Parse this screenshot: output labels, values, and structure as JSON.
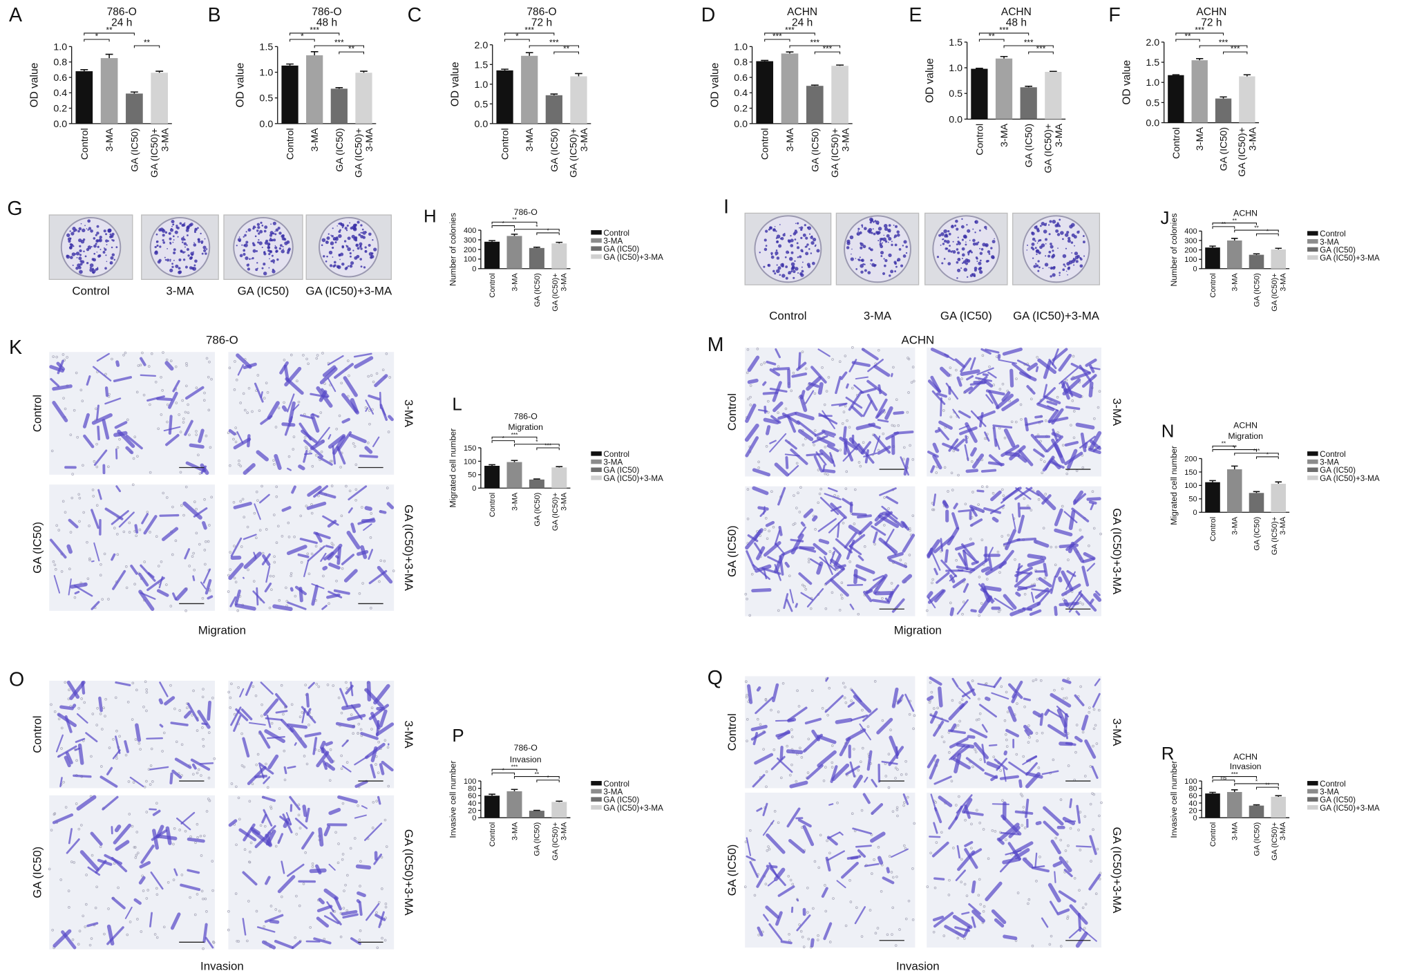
{
  "chart_data": [
    {
      "type": "bar",
      "panel": "A",
      "title": "786-O",
      "subtitle": "24 h",
      "y_label": "OD value",
      "categories": [
        "Control",
        "3-MA",
        "GA (IC50)",
        [
          "GA (IC50)+",
          "3-MA"
        ]
      ],
      "values": [
        0.68,
        0.85,
        0.39,
        0.66
      ],
      "errors": [
        0.02,
        0.05,
        0.02,
        0.02
      ],
      "colors": [
        "#111111",
        "#a3a3a3",
        "#6e6e6e",
        "#d4d4d4"
      ],
      "ylim": [
        0,
        1
      ],
      "yticks": [
        {
          "value": 0,
          "label": "0.0"
        },
        0.2,
        0.4,
        0.6,
        0.8,
        {
          "value": 1,
          "label": "1.0"
        }
      ],
      "comparisons": [
        {
          "pair": [
            0,
            2
          ],
          "label": "**"
        },
        {
          "pair": [
            0,
            1
          ],
          "label": "*"
        },
        {
          "pair": [
            2,
            3
          ],
          "label": "**"
        }
      ]
    },
    {
      "type": "bar",
      "panel": "B",
      "title": "786-O",
      "subtitle": "48 h",
      "y_label": "OD value",
      "categories": [
        "Control",
        "3-MA",
        "GA (IC50)",
        [
          "GA (IC50)+",
          "3-MA"
        ]
      ],
      "values": [
        1.13,
        1.33,
        0.68,
        0.99
      ],
      "errors": [
        0.03,
        0.07,
        0.02,
        0.03
      ],
      "colors": [
        "#111111",
        "#a3a3a3",
        "#6e6e6e",
        "#d4d4d4"
      ],
      "ylim": [
        0,
        1.5
      ],
      "yticks": [
        {
          "value": 0,
          "label": "0.0"
        },
        0.5,
        {
          "value": 1,
          "label": "1.0"
        },
        1.5
      ],
      "comparisons": [
        {
          "pair": [
            0,
            2
          ],
          "label": "***"
        },
        {
          "pair": [
            0,
            1
          ],
          "label": "*"
        },
        {
          "pair": [
            1,
            3
          ],
          "label": "***"
        },
        {
          "pair": [
            2,
            3
          ],
          "label": "**"
        }
      ]
    },
    {
      "type": "bar",
      "panel": "C",
      "title": "786-O",
      "subtitle": "72 h",
      "y_label": "OD value",
      "categories": [
        "Control",
        "3-MA",
        "GA (IC50)",
        [
          "GA (IC50)+",
          "3-MA"
        ]
      ],
      "values": [
        1.35,
        1.72,
        0.72,
        1.2
      ],
      "errors": [
        0.03,
        0.08,
        0.03,
        0.07
      ],
      "colors": [
        "#111111",
        "#a3a3a3",
        "#6e6e6e",
        "#d4d4d4"
      ],
      "ylim": [
        0,
        2
      ],
      "yticks": [
        {
          "value": 0,
          "label": "0.0"
        },
        0.5,
        {
          "value": 1,
          "label": "1.0"
        },
        1.5,
        {
          "value": 2,
          "label": "2.0"
        }
      ],
      "comparisons": [
        {
          "pair": [
            0,
            2
          ],
          "label": "***"
        },
        {
          "pair": [
            0,
            1
          ],
          "label": "*"
        },
        {
          "pair": [
            1,
            3
          ],
          "label": "***"
        },
        {
          "pair": [
            2,
            3
          ],
          "label": "**"
        }
      ]
    },
    {
      "type": "bar",
      "panel": "D",
      "title": "ACHN",
      "subtitle": "24 h",
      "y_label": "OD value",
      "categories": [
        "Control",
        "3-MA",
        "GA (IC50)",
        [
          "GA (IC50)+",
          "3-MA"
        ]
      ],
      "values": [
        0.81,
        0.91,
        0.49,
        0.75
      ],
      "errors": [
        0.01,
        0.02,
        0.01,
        0.01
      ],
      "colors": [
        "#111111",
        "#a3a3a3",
        "#6e6e6e",
        "#d4d4d4"
      ],
      "ylim": [
        0,
        1
      ],
      "yticks": [
        {
          "value": 0,
          "label": "0.0"
        },
        0.2,
        0.4,
        0.6,
        0.8,
        {
          "value": 1,
          "label": "1.0"
        }
      ],
      "comparisons": [
        {
          "pair": [
            0,
            2
          ],
          "label": "***"
        },
        {
          "pair": [
            0,
            1
          ],
          "label": "***"
        },
        {
          "pair": [
            1,
            3
          ],
          "label": "***"
        },
        {
          "pair": [
            2,
            3
          ],
          "label": "***"
        }
      ]
    },
    {
      "type": "bar",
      "panel": "E",
      "title": "ACHN",
      "subtitle": "48 h",
      "y_label": "OD value",
      "categories": [
        "Control",
        "3-MA",
        "GA (IC50)",
        [
          "GA (IC50)+",
          "3-MA"
        ]
      ],
      "values": [
        0.98,
        1.18,
        0.62,
        0.92
      ],
      "errors": [
        0.01,
        0.04,
        0.02,
        0.01
      ],
      "colors": [
        "#111111",
        "#a3a3a3",
        "#6e6e6e",
        "#d4d4d4"
      ],
      "ylim": [
        0,
        1.5
      ],
      "yticks": [
        {
          "value": 0,
          "label": "0.0"
        },
        0.5,
        {
          "value": 1,
          "label": "1.0"
        },
        1.5
      ],
      "comparisons": [
        {
          "pair": [
            0,
            2
          ],
          "label": "***"
        },
        {
          "pair": [
            0,
            1
          ],
          "label": "**"
        },
        {
          "pair": [
            1,
            3
          ],
          "label": "***"
        },
        {
          "pair": [
            2,
            3
          ],
          "label": "***"
        }
      ]
    },
    {
      "type": "bar",
      "panel": "F",
      "title": "ACHN",
      "subtitle": "72 h",
      "y_label": "OD value",
      "categories": [
        "Control",
        "3-MA",
        "GA (IC50)",
        [
          "GA (IC50)+",
          "3-MA"
        ]
      ],
      "values": [
        1.18,
        1.55,
        0.6,
        1.15
      ],
      "errors": [
        0.01,
        0.04,
        0.04,
        0.04
      ],
      "colors": [
        "#111111",
        "#a3a3a3",
        "#6e6e6e",
        "#d4d4d4"
      ],
      "ylim": [
        0,
        2
      ],
      "yticks": [
        {
          "value": 0,
          "label": "0.0"
        },
        0.5,
        {
          "value": 1,
          "label": "1.0"
        },
        1.5,
        {
          "value": 2,
          "label": "2.0"
        }
      ],
      "comparisons": [
        {
          "pair": [
            0,
            2
          ],
          "label": "***"
        },
        {
          "pair": [
            0,
            1
          ],
          "label": "**"
        },
        {
          "pair": [
            1,
            3
          ],
          "label": "***"
        },
        {
          "pair": [
            2,
            3
          ],
          "label": "***"
        }
      ]
    },
    {
      "type": "bar",
      "panel": "H",
      "title": "786-O",
      "y_label": "Number of colonies",
      "categories": [
        "Control",
        "3-MA",
        "GA (IC50)",
        [
          "GA (IC50)+",
          "3-MA"
        ]
      ],
      "legend": [
        "Control",
        "3-MA",
        "GA (IC50)",
        "GA (IC50)+3-MA"
      ],
      "values": [
        280,
        340,
        215,
        262
      ],
      "errors": [
        12,
        18,
        8,
        12
      ],
      "colors": [
        "#111111",
        "#8c8c8c",
        "#6e6e6e",
        "#d0d0d0"
      ],
      "ylim": [
        0,
        400
      ],
      "yticks": [
        0,
        100,
        200,
        300,
        400
      ],
      "comparisons": [
        {
          "pair": [
            0,
            2
          ],
          "label": "**"
        },
        {
          "pair": [
            0,
            1
          ],
          "label": "*"
        },
        {
          "pair": [
            1,
            3
          ],
          "label": "*"
        },
        {
          "pair": [
            2,
            3
          ],
          "label": "*"
        }
      ]
    },
    {
      "type": "bar",
      "panel": "J",
      "title": "ACHN",
      "y_label": "Number of colonies",
      "categories": [
        "Control",
        "3-MA",
        "GA (IC50)",
        [
          "GA (IC50)+",
          "3-MA"
        ]
      ],
      "legend": [
        "Control",
        "3-MA",
        "GA (IC50)",
        "GA (IC50)+3-MA"
      ],
      "values": [
        225,
        300,
        148,
        205
      ],
      "errors": [
        15,
        22,
        10,
        12
      ],
      "colors": [
        "#111111",
        "#8c8c8c",
        "#6e6e6e",
        "#d0d0d0"
      ],
      "ylim": [
        0,
        400
      ],
      "yticks": [
        0,
        100,
        200,
        300,
        400
      ],
      "comparisons": [
        {
          "pair": [
            0,
            2
          ],
          "label": "**"
        },
        {
          "pair": [
            0,
            1
          ],
          "label": "**"
        },
        {
          "pair": [
            1,
            3
          ],
          "label": "**"
        },
        {
          "pair": [
            2,
            3
          ],
          "label": "*"
        }
      ]
    },
    {
      "type": "bar",
      "panel": "L",
      "title": "786-O",
      "subtitle": "Migration",
      "y_label": "Migrated cell number",
      "categories": [
        "Control",
        "3-MA",
        "GA (IC50)",
        [
          "GA (IC50)+",
          "3-MA"
        ]
      ],
      "legend": [
        "Control",
        "3-MA",
        "GA (IC50)",
        "GA (IC50)+3-MA"
      ],
      "values": [
        83,
        97,
        32,
        77
      ],
      "errors": [
        4,
        6,
        2,
        3
      ],
      "colors": [
        "#111111",
        "#8c8c8c",
        "#6e6e6e",
        "#d0d0d0"
      ],
      "ylim": [
        0,
        150
      ],
      "yticks": [
        0,
        50,
        100,
        150
      ],
      "comparisons": [
        {
          "pair": [
            0,
            2
          ],
          "label": "***"
        },
        {
          "pair": [
            0,
            1
          ],
          "label": "*"
        },
        {
          "pair": [
            1,
            3
          ],
          "label": "*"
        },
        {
          "pair": [
            2,
            3
          ],
          "label": "***"
        }
      ]
    },
    {
      "type": "bar",
      "panel": "N",
      "title": "ACHN",
      "subtitle": "Migration",
      "y_label": "Migrated cell number",
      "categories": [
        "Control",
        "3-MA",
        "GA (IC50)",
        [
          "GA (IC50)+",
          "3-MA"
        ]
      ],
      "legend": [
        "Control",
        "3-MA",
        "GA (IC50)",
        "GA (IC50)+3-MA"
      ],
      "values": [
        112,
        160,
        72,
        106
      ],
      "errors": [
        6,
        12,
        5,
        7
      ],
      "colors": [
        "#111111",
        "#8c8c8c",
        "#6e6e6e",
        "#d0d0d0"
      ],
      "ylim": [
        0,
        200
      ],
      "yticks": [
        0,
        50,
        100,
        150,
        200
      ],
      "comparisons": [
        {
          "pair": [
            0,
            1
          ],
          "label": "**"
        },
        {
          "pair": [
            0,
            2
          ],
          "label": "**"
        },
        {
          "pair": [
            1,
            3
          ],
          "label": "***"
        },
        {
          "pair": [
            2,
            3
          ],
          "label": "*"
        }
      ]
    },
    {
      "type": "bar",
      "panel": "P",
      "title": "786-O",
      "subtitle": "Invasion",
      "y_label": "Invasive cell number",
      "categories": [
        "Control",
        "3-MA",
        "GA (IC50)",
        [
          "GA (IC50)+",
          "3-MA"
        ]
      ],
      "legend": [
        "Control",
        "3-MA",
        "GA (IC50)",
        "GA (IC50)+3-MA"
      ],
      "values": [
        60,
        72,
        19,
        43
      ],
      "errors": [
        4,
        5,
        1,
        2
      ],
      "colors": [
        "#111111",
        "#8c8c8c",
        "#6e6e6e",
        "#d0d0d0"
      ],
      "ylim": [
        0,
        100
      ],
      "yticks": [
        0,
        20,
        40,
        60,
        80,
        100
      ],
      "comparisons": [
        {
          "pair": [
            0,
            2
          ],
          "label": "***"
        },
        {
          "pair": [
            0,
            1
          ],
          "label": "*"
        },
        {
          "pair": [
            1,
            3
          ],
          "label": "**"
        },
        {
          "pair": [
            2,
            3
          ],
          "label": "*"
        }
      ]
    },
    {
      "type": "bar",
      "panel": "R",
      "title": "ACHN",
      "subtitle": "Invasion",
      "y_label": "Invasive cell number",
      "categories": [
        "Control",
        "3-MA",
        "GA (IC50)",
        [
          "GA (IC50)+",
          "3-MA"
        ]
      ],
      "legend": [
        "Control",
        "3-MA",
        "GA (IC50)",
        "GA (IC50)+3-MA"
      ],
      "values": [
        66,
        70,
        33,
        57
      ],
      "errors": [
        3,
        6,
        2,
        3
      ],
      "colors": [
        "#111111",
        "#8c8c8c",
        "#6e6e6e",
        "#d0d0d0"
      ],
      "ylim": [
        0,
        100
      ],
      "yticks": [
        0,
        20,
        40,
        60,
        80,
        100
      ],
      "comparisons": [
        {
          "pair": [
            0,
            2
          ],
          "label": "***"
        },
        {
          "pair": [
            0,
            1
          ],
          "label": "ns"
        },
        {
          "pair": [
            1,
            3
          ],
          "label": "*"
        },
        {
          "pair": [
            2,
            3
          ],
          "label": "**"
        }
      ]
    }
  ],
  "photos": [
    {
      "panel": "G",
      "labels": [
        "Control",
        "3-MA",
        "GA (IC50)",
        "GA (IC50)+3-MA"
      ]
    },
    {
      "panel": "I",
      "labels": [
        "Control",
        "3-MA",
        "GA (IC50)",
        "GA (IC50)+3-MA"
      ]
    },
    {
      "panel": "K",
      "header": "786-O",
      "labels": [
        "Control",
        "3-MA",
        "GA (IC50)",
        "GA (IC50)+3-MA"
      ],
      "caption": "Migration"
    },
    {
      "panel": "M",
      "header": "ACHN",
      "labels": [
        "Control",
        "3-MA",
        "GA (IC50)",
        "GA (IC50)+3-MA"
      ],
      "caption": "Migration"
    },
    {
      "panel": "O",
      "labels": [
        "Control",
        "3-MA",
        "GA (IC50)",
        "GA (IC50)+3-MA"
      ],
      "caption": "Invasion"
    },
    {
      "panel": "Q",
      "labels": [
        "Control",
        "3-MA",
        "GA (IC50)",
        "GA (IC50)+3-MA"
      ],
      "caption": "Invasion"
    }
  ]
}
